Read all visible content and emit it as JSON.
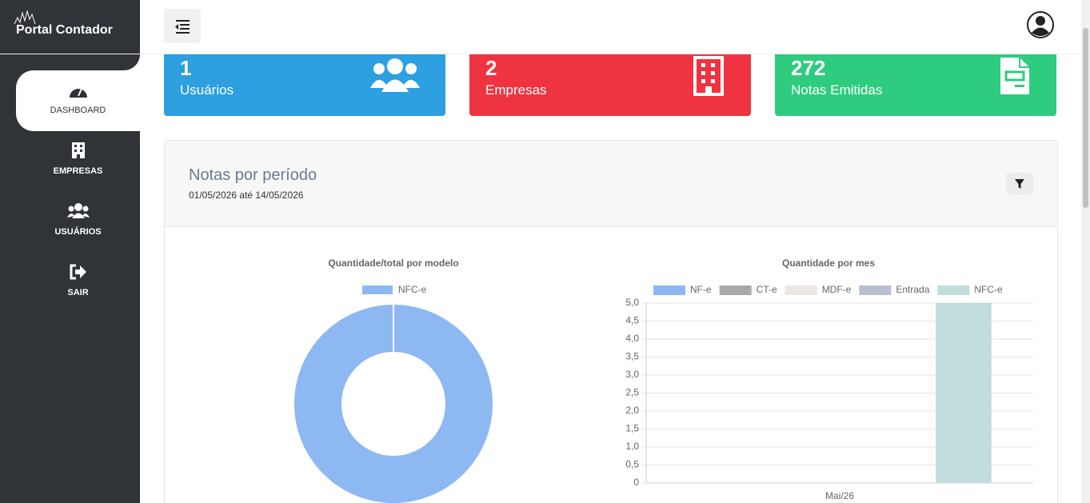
{
  "brand": "Portal Contador",
  "menu": [
    "DASHBOARD",
    "EMPRESAS",
    "USUÁRIOS",
    "SAIR"
  ],
  "cards": [
    {
      "value": 1,
      "label": "Usuários"
    },
    {
      "value": 2,
      "label": "Empresas"
    },
    {
      "value": 272,
      "label": "Notas Emitidas"
    }
  ],
  "panel": {
    "title": "Notas por período",
    "subtitle": "01/05/2026 até 14/05/2026"
  },
  "chart_data": [
    {
      "type": "pie",
      "title": "Quantidade/total por modelo",
      "donut": true,
      "categories": [
        "NFC-e"
      ],
      "values": [
        5
      ],
      "colors": [
        "#8db8f2"
      ]
    },
    {
      "type": "bar",
      "title": "Quantidade por mes",
      "categories": [
        "Mai/26"
      ],
      "series": [
        {
          "name": "NF-e",
          "color": "#8db8f2",
          "values": [
            0
          ]
        },
        {
          "name": "CT-e",
          "color": "#a9a9a9",
          "values": [
            0
          ]
        },
        {
          "name": "MDF-e",
          "color": "#ebe6e3",
          "values": [
            0
          ]
        },
        {
          "name": "Entrada",
          "color": "#b9bfd1",
          "values": [
            0
          ]
        },
        {
          "name": "NFC-e",
          "color": "#c3dddd",
          "values": [
            5
          ]
        }
      ],
      "ylim": [
        0,
        5
      ],
      "yticks": [
        0,
        {
          "value": 0.5,
          "label": "0,5"
        },
        {
          "value": 1,
          "label": "1,0"
        },
        {
          "value": 1.5,
          "label": "1,5"
        },
        {
          "value": 2,
          "label": "2,0"
        },
        {
          "value": 2.5,
          "label": "2,5"
        },
        {
          "value": 3,
          "label": "3,0"
        },
        {
          "value": 3.5,
          "label": "3,5"
        },
        {
          "value": 4,
          "label": "4,0"
        },
        {
          "value": 4.5,
          "label": "4,5"
        },
        {
          "value": 5,
          "label": "5,0"
        }
      ],
      "grid": true
    }
  ]
}
